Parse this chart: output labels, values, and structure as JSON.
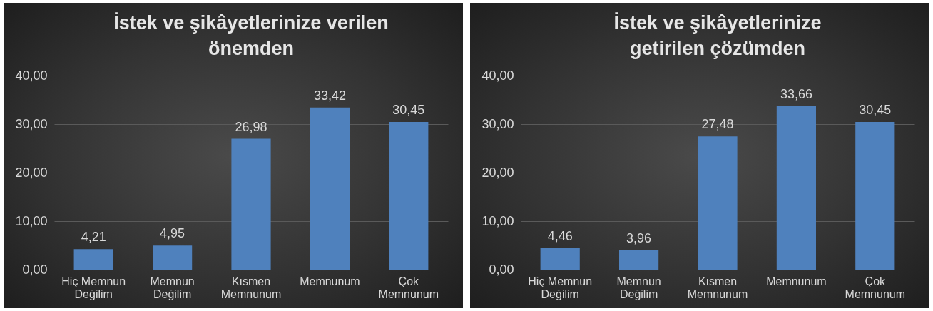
{
  "chart_data": [
    {
      "type": "bar",
      "title": "İstek ve şikâyetlerinize verilen önemden",
      "categories": [
        "Hiç Memnun Değilim",
        "Memnun Değilim",
        "Kısmen Memnunum",
        "Memnunum",
        "Çok Memnunum"
      ],
      "values": [
        4.21,
        4.95,
        26.98,
        33.42,
        30.45
      ],
      "value_labels": [
        "4,21",
        "4,95",
        "26,98",
        "33,42",
        "30,45"
      ],
      "color": "#4f81bd",
      "ylim": [
        0,
        40
      ],
      "yticks": [
        {
          "value": 0,
          "label": "0,00"
        },
        {
          "value": 10,
          "label": "10,00"
        },
        {
          "value": 20,
          "label": "20,00"
        },
        {
          "value": 30,
          "label": "30,00"
        },
        {
          "value": 40,
          "label": "40,00"
        }
      ],
      "grid": "y"
    },
    {
      "type": "bar",
      "title": "İstek ve şikâyetlerinize getirilen çözümden",
      "categories": [
        "Hiç Memnun Değilim",
        "Memnun Değilim",
        "Kısmen Memnunum",
        "Memnunum",
        "Çok Memnunum"
      ],
      "values": [
        4.46,
        3.96,
        27.48,
        33.66,
        30.45
      ],
      "value_labels": [
        "4,46",
        "3,96",
        "27,48",
        "33,66",
        "30,45"
      ],
      "color": "#4f81bd",
      "ylim": [
        0,
        40
      ],
      "yticks": [
        {
          "value": 0,
          "label": "0,00"
        },
        {
          "value": 10,
          "label": "10,00"
        },
        {
          "value": 20,
          "label": "20,00"
        },
        {
          "value": 30,
          "label": "30,00"
        },
        {
          "value": 40,
          "label": "40,00"
        }
      ],
      "grid": "y"
    }
  ]
}
